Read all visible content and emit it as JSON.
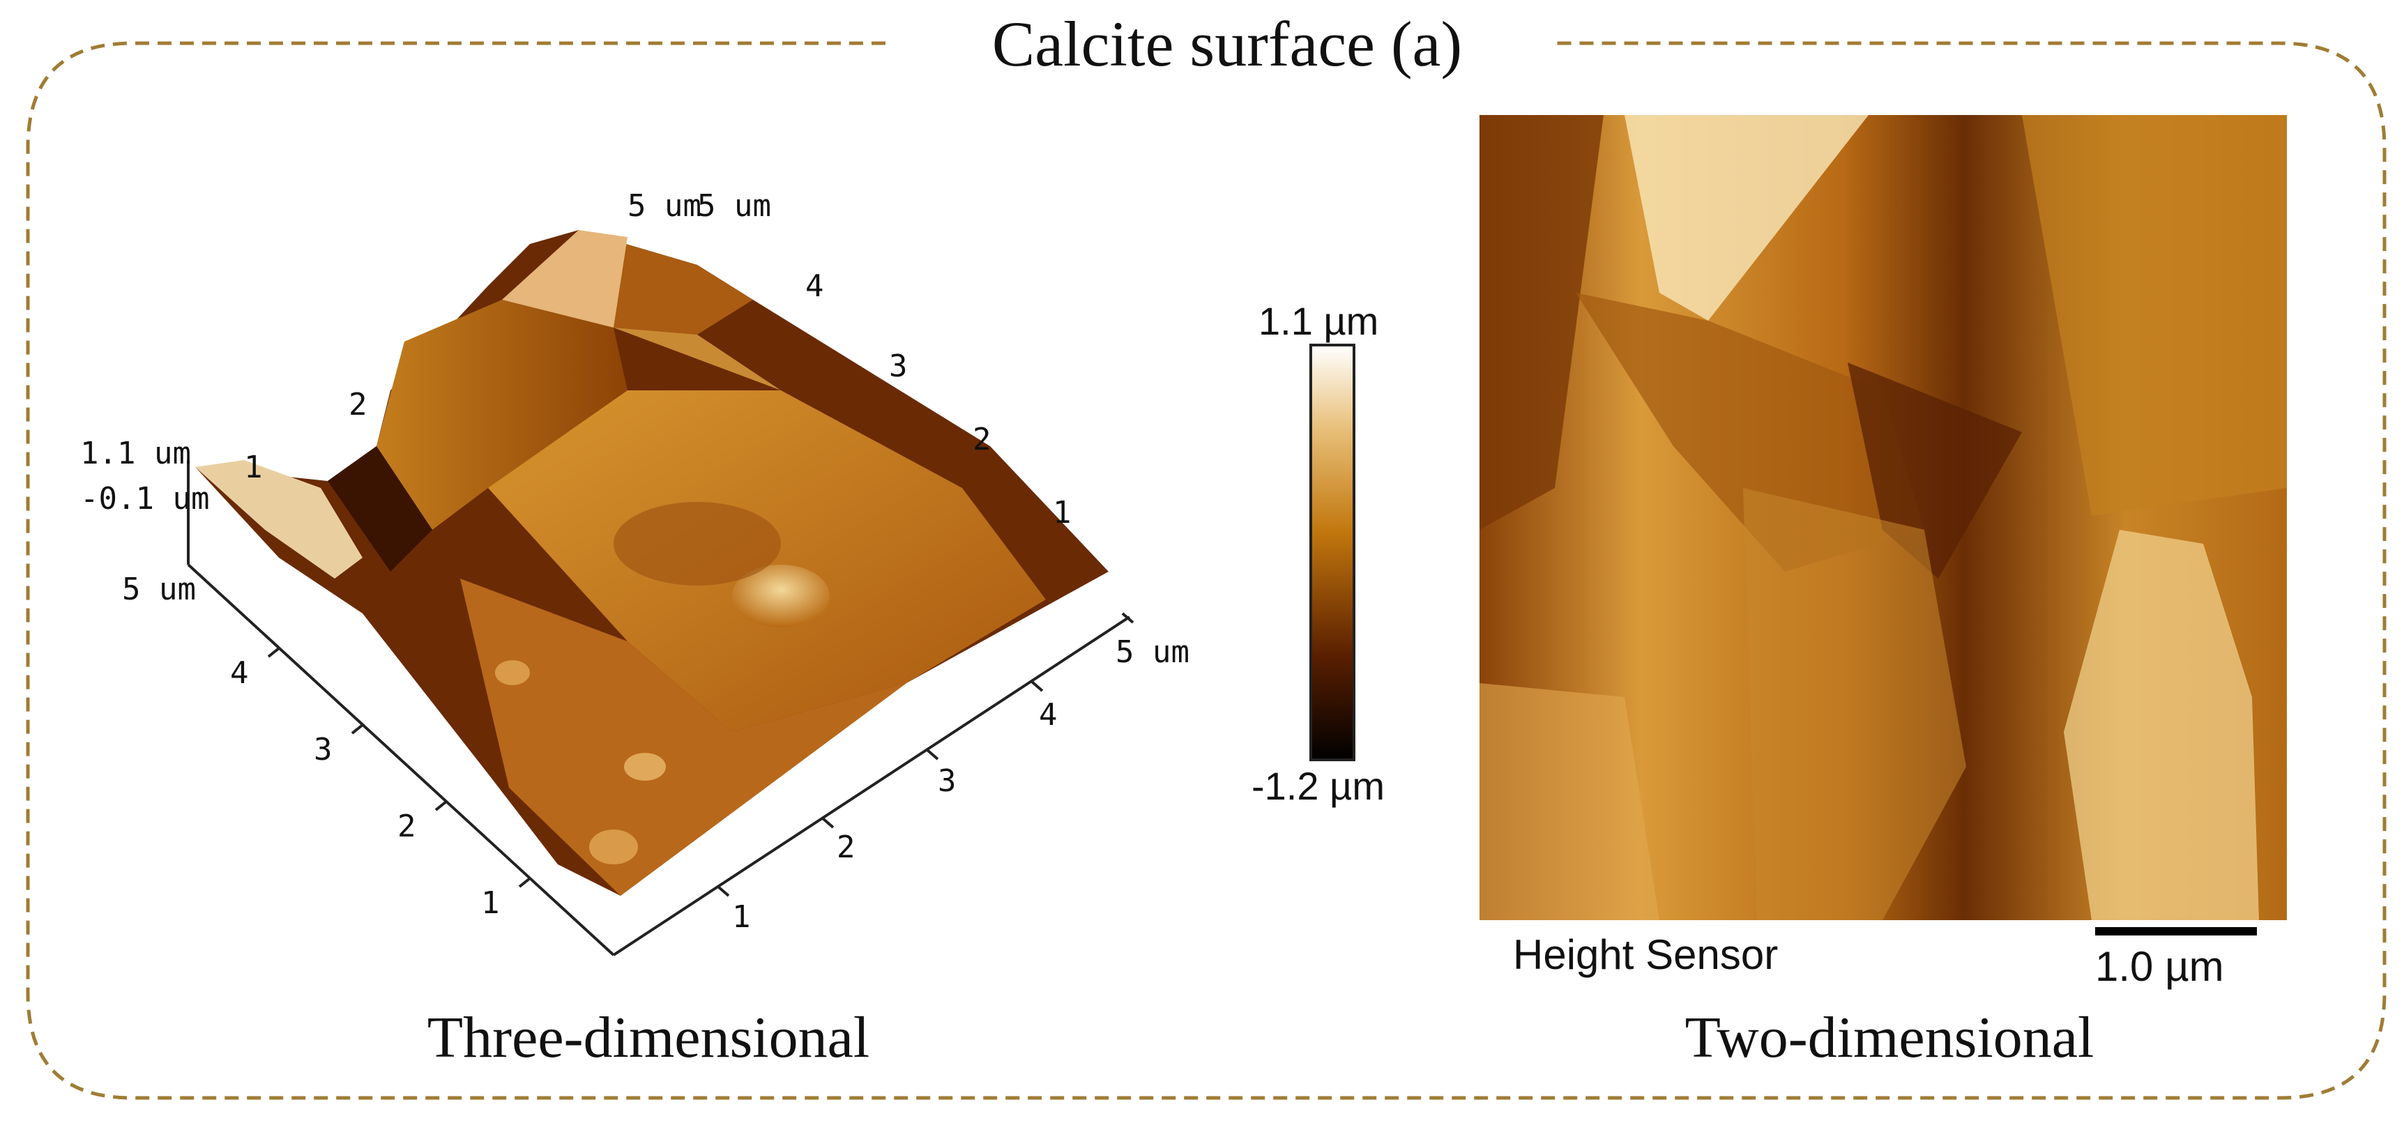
{
  "title": "Calcite surface (a)",
  "panels": {
    "three_d": {
      "caption": "Three-dimensional",
      "z_labels": [
        "1.1 um",
        "-0.1 um"
      ],
      "x_ticks": [
        "1",
        "2",
        "3",
        "4",
        "5 um"
      ],
      "y_ticks": [
        "1",
        "2",
        "3",
        "4",
        "5 um"
      ],
      "top_ticks": [
        "5 um",
        "5 um",
        "4",
        "3",
        "2",
        "1"
      ],
      "left_ticks": [
        "2",
        "1"
      ]
    },
    "two_d": {
      "caption": "Two-dimensional",
      "channel_label": "Height Sensor",
      "scale_bar_label": "1.0 µm"
    }
  },
  "colorbar": {
    "max_label": "1.1 µm",
    "min_label": "-1.2 µm",
    "colormap": [
      "#000000",
      "#6b2a00",
      "#c87b0c",
      "#e9c27a",
      "#ffffff"
    ]
  },
  "colors": {
    "frame": "#a07c34",
    "afm_dark": "#5a2a05",
    "afm_mid": "#c07a18",
    "afm_light": "#f4dca0"
  }
}
